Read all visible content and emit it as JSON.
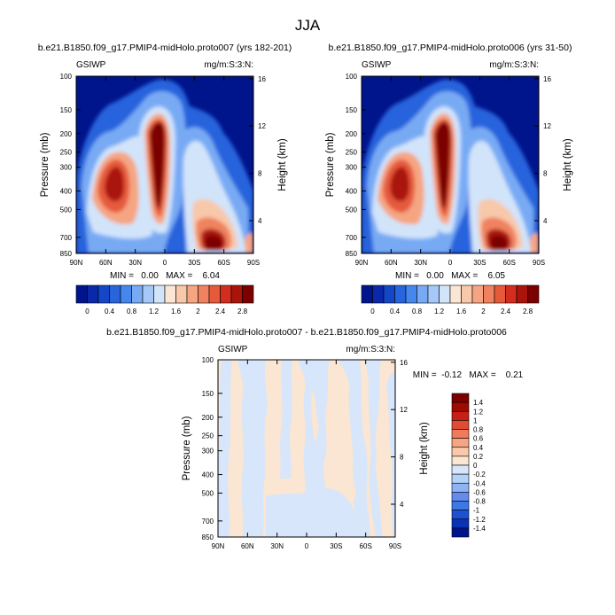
{
  "page_title": "JJA",
  "colors": {
    "abs_scale": [
      "#00148c",
      "#0a28aa",
      "#1446c8",
      "#2864dc",
      "#4687ee",
      "#78aaf4",
      "#a5c8f8",
      "#d2e4fa",
      "#fae6d2",
      "#f8c8aa",
      "#f5a582",
      "#f0825f",
      "#e65a3c",
      "#d22d1e",
      "#aa140a",
      "#7d0000"
    ],
    "diff_scale": [
      "#00148c",
      "#0a32b4",
      "#1e50d2",
      "#3c78e6",
      "#648cf0",
      "#8cb4f5",
      "#b4d2f8",
      "#d7e6fa",
      "#fae6d2",
      "#fac8aa",
      "#f5a582",
      "#f07a5a",
      "#e14b32",
      "#c81e14",
      "#a00a00",
      "#7d0000"
    ]
  },
  "chart_data": [
    {
      "type": "heatmap",
      "title": "b.e21.B1850.f09_g17.PMIP4-midHolo.proto007 (yrs 182-201)",
      "corner_left": "GSIWP",
      "corner_right": "mg/m:S:3:N:",
      "ylabel": "Pressure (mb)",
      "y2label": "Height (km)",
      "x_ticks": [
        "90N",
        "60N",
        "30N",
        "0",
        "30S",
        "60S",
        "90S"
      ],
      "y_ticks": [
        "100",
        "150",
        "200",
        "250",
        "300",
        "400",
        "500",
        "700",
        "850"
      ],
      "y2_ticks": [
        "16",
        "12",
        "8",
        "4"
      ],
      "min_max": "MIN =   0.00   MAX =    6.04",
      "colorbar_labels": [
        "0",
        "0.4",
        "0.8",
        "1.2",
        "1.6",
        "2",
        "2.4",
        "2.8"
      ],
      "levels": [
        0,
        0.2,
        0.4,
        0.6,
        0.8,
        1.0,
        1.2,
        1.4,
        1.6,
        1.8,
        2.0,
        2.2,
        2.4,
        2.6,
        2.8
      ]
    },
    {
      "type": "heatmap",
      "title": "b.e21.B1850.f09_g17.PMIP4-midHolo.proto006 (yrs 31-50)",
      "corner_left": "GSIWP",
      "corner_right": "mg/m:S:3:N:",
      "ylabel": "Pressure (mb)",
      "y2label": "Height (km)",
      "x_ticks": [
        "90N",
        "60N",
        "30N",
        "0",
        "30S",
        "60S",
        "90S"
      ],
      "y_ticks": [
        "100",
        "150",
        "200",
        "250",
        "300",
        "400",
        "500",
        "700",
        "850"
      ],
      "y2_ticks": [
        "16",
        "12",
        "8",
        "4"
      ],
      "min_max": "MIN =   0.00   MAX =    6.05",
      "colorbar_labels": [
        "0",
        "0.4",
        "0.8",
        "1.2",
        "1.6",
        "2",
        "2.4",
        "2.8"
      ],
      "levels": [
        0,
        0.2,
        0.4,
        0.6,
        0.8,
        1.0,
        1.2,
        1.4,
        1.6,
        1.8,
        2.0,
        2.2,
        2.4,
        2.6,
        2.8
      ]
    },
    {
      "type": "heatmap",
      "title": "b.e21.B1850.f09_g17.PMIP4-midHolo.proto007 - b.e21.B1850.f09_g17.PMIP4-midHolo.proto006",
      "corner_left": "GSIWP",
      "corner_right": "mg/m:S:3:N:",
      "ylabel": "Pressure (mb)",
      "y2label": "Height (km)",
      "x_ticks": [
        "90N",
        "60N",
        "30N",
        "0",
        "30S",
        "60S",
        "90S"
      ],
      "y_ticks": [
        "100",
        "150",
        "200",
        "250",
        "300",
        "400",
        "500",
        "700",
        "850"
      ],
      "y2_ticks": [
        "16",
        "12",
        "8",
        "4"
      ],
      "min_max": "MIN =  -0.12   MAX =    0.21",
      "colorbar_labels": [
        "1.4",
        "1.2",
        "1",
        "0.8",
        "0.6",
        "0.4",
        "0.2",
        "0",
        "-0.2",
        "-0.4",
        "-0.6",
        "-0.8",
        "-1",
        "-1.2",
        "-1.4"
      ]
    }
  ]
}
